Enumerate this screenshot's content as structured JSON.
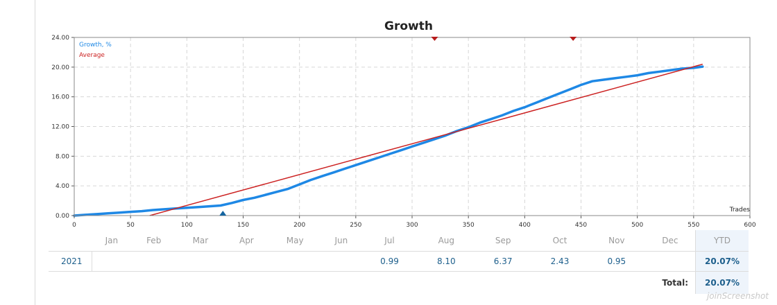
{
  "chart_data": {
    "type": "line",
    "title": "Growth",
    "xlabel": "Trades",
    "xlim": [
      0,
      600
    ],
    "ylim": [
      0,
      24
    ],
    "x_ticks": [
      "0",
      "50",
      "100",
      "150",
      "200",
      "250",
      "300",
      "350",
      "400",
      "450",
      "500",
      "550",
      "600"
    ],
    "y_ticks": [
      "0.00",
      "4.00",
      "8.00",
      "12.00",
      "16.00",
      "20.00",
      "24.00"
    ],
    "grid": true,
    "legend_position": "top-left",
    "series": [
      {
        "name": "Growth, %",
        "color": "#1e88e5",
        "x": [
          0,
          10,
          20,
          30,
          40,
          50,
          60,
          70,
          80,
          90,
          100,
          110,
          120,
          130,
          140,
          150,
          160,
          170,
          180,
          190,
          200,
          210,
          220,
          230,
          240,
          250,
          260,
          270,
          280,
          290,
          300,
          310,
          320,
          330,
          340,
          350,
          360,
          370,
          380,
          390,
          400,
          410,
          420,
          430,
          440,
          450,
          460,
          470,
          480,
          490,
          500,
          510,
          520,
          530,
          540,
          550,
          558
        ],
        "y": [
          0.0,
          0.1,
          0.2,
          0.3,
          0.4,
          0.5,
          0.6,
          0.75,
          0.85,
          0.95,
          1.05,
          1.15,
          1.25,
          1.35,
          1.7,
          2.1,
          2.4,
          2.8,
          3.2,
          3.6,
          4.2,
          4.8,
          5.3,
          5.8,
          6.3,
          6.8,
          7.3,
          7.8,
          8.3,
          8.8,
          9.3,
          9.8,
          10.3,
          10.8,
          11.4,
          11.9,
          12.5,
          13.0,
          13.5,
          14.1,
          14.6,
          15.2,
          15.8,
          16.4,
          17.0,
          17.6,
          18.1,
          18.3,
          18.5,
          18.7,
          18.9,
          19.2,
          19.4,
          19.6,
          19.8,
          19.9,
          20.07
        ]
      },
      {
        "name": "Average",
        "color": "#cc2222",
        "x": [
          67,
          558
        ],
        "y": [
          0.0,
          20.4
        ]
      }
    ],
    "markers": [
      {
        "x": 320,
        "kind": "down",
        "color": "#b71c1c"
      },
      {
        "x": 443,
        "kind": "down",
        "color": "#b71c1c"
      },
      {
        "x": 132,
        "kind": "up",
        "color": "#1565a0"
      }
    ]
  },
  "table": {
    "months": [
      "Jan",
      "Feb",
      "Mar",
      "Apr",
      "May",
      "Jun",
      "Jul",
      "Aug",
      "Sep",
      "Oct",
      "Nov",
      "Dec"
    ],
    "ytd_header": "YTD",
    "rows": [
      {
        "year": "2021",
        "values": [
          "",
          "",
          "",
          "",
          "",
          "",
          "0.99",
          "8.10",
          "6.37",
          "2.43",
          "0.95",
          ""
        ],
        "ytd": "20.07%"
      }
    ],
    "total_label": "Total:",
    "total_value": "20.07%"
  },
  "watermark": "joinScreenshot"
}
